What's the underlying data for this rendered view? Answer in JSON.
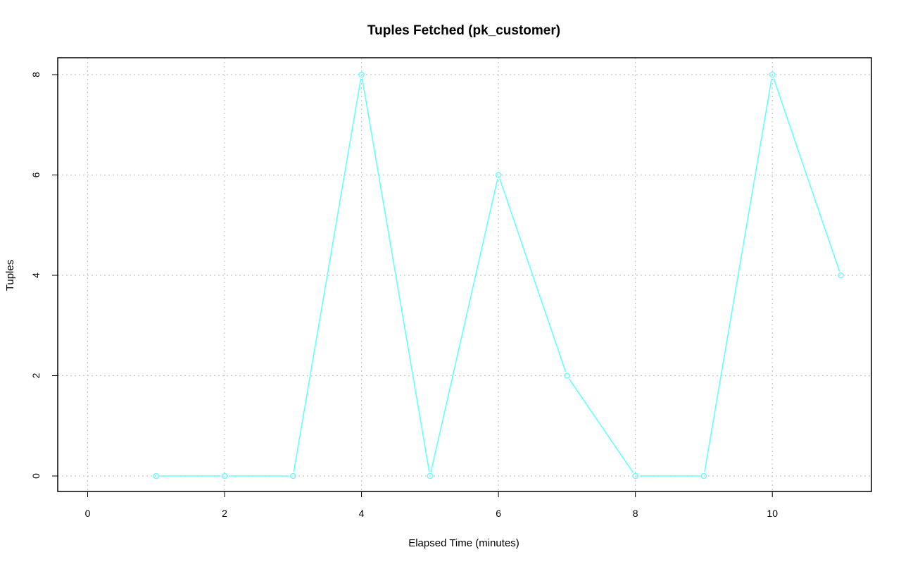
{
  "chart_data": {
    "type": "line",
    "title": "Tuples Fetched (pk_customer)",
    "xlabel": "Elapsed Time (minutes)",
    "ylabel": "Tuples",
    "xlim": [
      0,
      11
    ],
    "ylim": [
      0,
      8
    ],
    "xticks": [
      0,
      2,
      4,
      6,
      8,
      10
    ],
    "yticks": [
      0,
      2,
      4,
      6,
      8
    ],
    "xtick_labels": [
      "0",
      "2",
      "4",
      "6",
      "8",
      "10"
    ],
    "ytick_labels": [
      "0",
      "2",
      "4",
      "6",
      "8"
    ],
    "grid": true,
    "series": [
      {
        "x": [
          1,
          2,
          3,
          4,
          5,
          6,
          7,
          8,
          9,
          10,
          11
        ],
        "y": [
          0,
          0,
          0,
          8,
          0,
          6,
          2,
          0,
          0,
          8,
          4
        ],
        "color": "#66ffff",
        "markers": "open-circle"
      }
    ]
  }
}
